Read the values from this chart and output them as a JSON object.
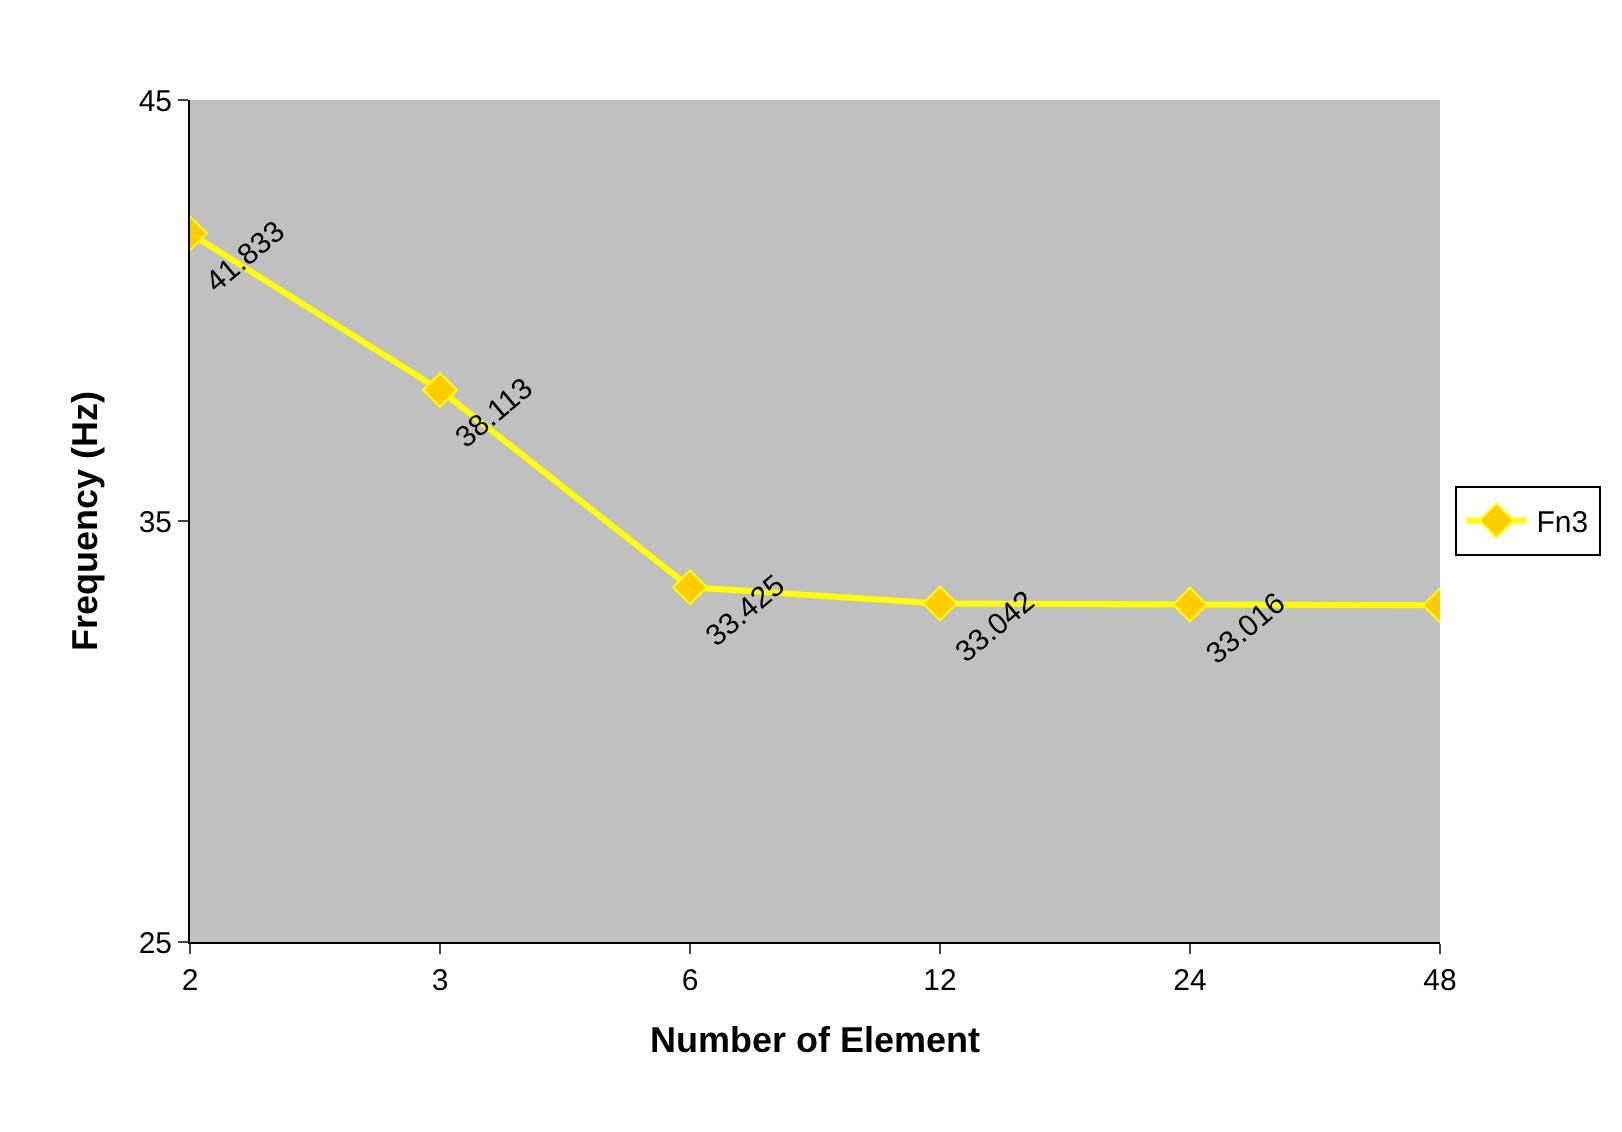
{
  "chart_data": {
    "type": "line",
    "xlabel": "Number of Element",
    "ylabel": "Frequency (Hz)",
    "categories": [
      "2",
      "3",
      "6",
      "12",
      "24",
      "48"
    ],
    "series": [
      {
        "name": "Fn3",
        "color": "#ffff00",
        "values": [
          41.833,
          38.113,
          33.425,
          33.042,
          33.016,
          33.0
        ],
        "value_labels": [
          "41.833",
          "38.113",
          "33.425",
          "33.042",
          "33.016",
          null
        ]
      }
    ],
    "ylim": [
      25,
      45
    ],
    "yticks": [
      25,
      35,
      45
    ],
    "grid": false,
    "legend": "right",
    "marker": "diamond",
    "line_style": "solid"
  }
}
